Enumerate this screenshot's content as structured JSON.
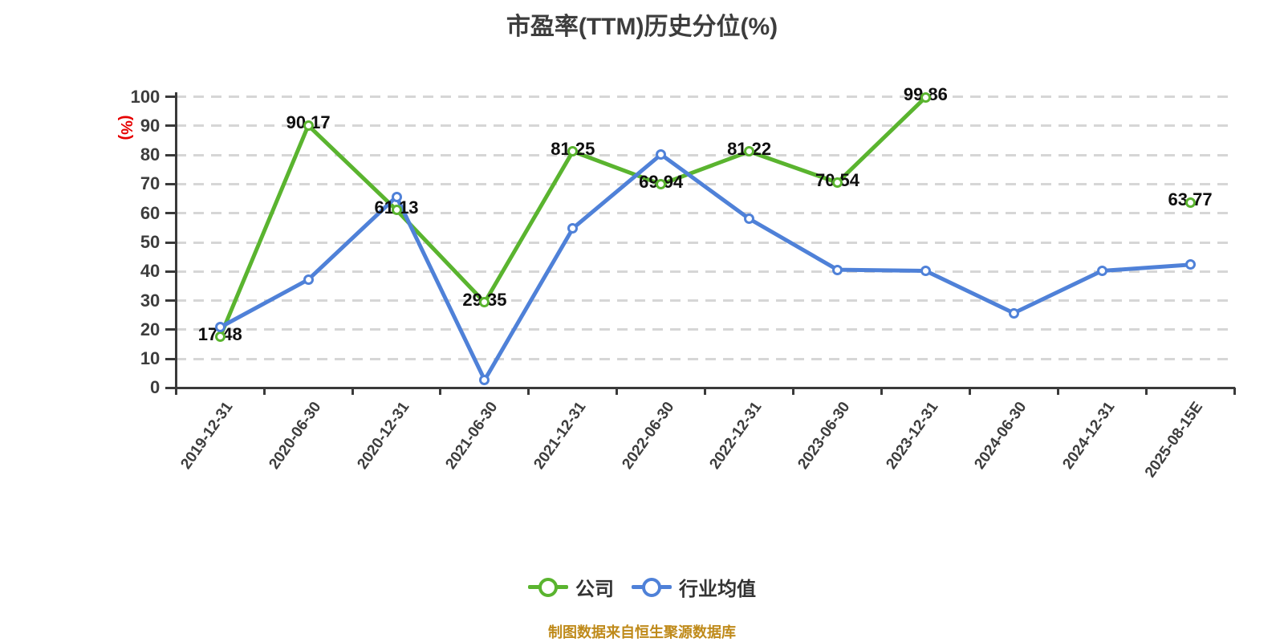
{
  "title": "市盈率(TTM)历史分位(%)",
  "source_note": "制图数据来自恒生聚源数据库",
  "colors": {
    "company": "#5ab42f",
    "industry": "#4f81d8",
    "axis": "#3a3a3a",
    "grid": "#d6d6d6",
    "unit_label": "#e60000",
    "source_note": "#bf8a1a",
    "data_label": "#0f0f0f"
  },
  "chart_data": {
    "type": "line",
    "title": "市盈率(TTM)历史分位(%)",
    "xlabel": "",
    "ylabel": "(%)",
    "ylim": [
      0,
      100
    ],
    "y_ticks": [
      0,
      10,
      20,
      30,
      40,
      50,
      60,
      70,
      80,
      90,
      100
    ],
    "grid": true,
    "grid_style": "dashed",
    "legend_position": "bottom",
    "categories": [
      "2019-12-31",
      "2020-06-30",
      "2020-12-31",
      "2021-06-30",
      "2021-12-31",
      "2022-06-30",
      "2022-12-31",
      "2023-06-30",
      "2023-12-31",
      "2024-06-30",
      "2024-12-31",
      "2025-08-15E"
    ],
    "series": [
      {
        "key": "company",
        "name": "公司",
        "color": "#5ab42f",
        "labels_visible": true,
        "values": [
          17.48,
          90.17,
          61.13,
          29.35,
          81.25,
          69.94,
          81.22,
          70.54,
          99.86,
          null,
          null,
          63.77
        ]
      },
      {
        "key": "industry",
        "name": "行业均值",
        "color": "#4f81d8",
        "labels_visible": false,
        "values": [
          20.8,
          37.2,
          65.7,
          2.7,
          54.8,
          80.2,
          58.1,
          40.6,
          40.2,
          25.7,
          40.2,
          42.3
        ]
      }
    ]
  }
}
